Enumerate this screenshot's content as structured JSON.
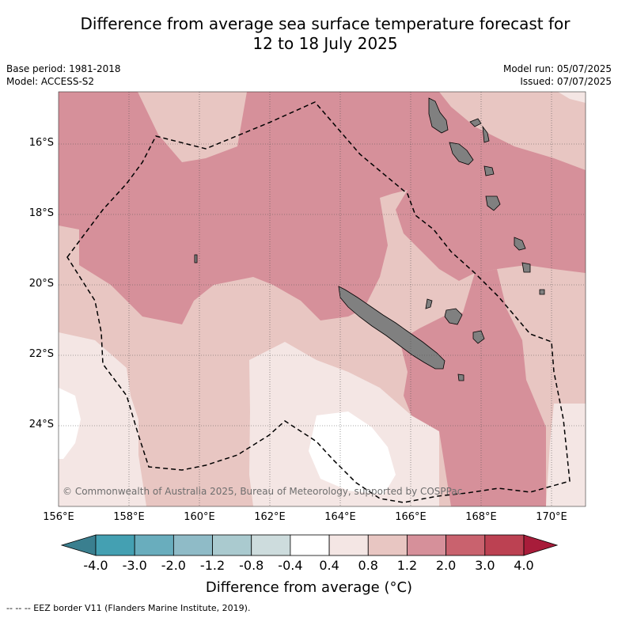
{
  "title_line1": "Difference from average sea surface temperature forecast for",
  "title_line2": "12 to 18 July 2025",
  "meta": {
    "base_period": "Base period: 1981-2018",
    "model": "Model: ACCESS-S2",
    "model_run": "Model run: 05/07/2025",
    "issued": "Issued: 07/07/2025"
  },
  "lat_ticks": [
    "16°S",
    "18°S",
    "20°S",
    "22°S",
    "24°S"
  ],
  "lon_ticks": [
    "156°E",
    "158°E",
    "160°E",
    "162°E",
    "164°E",
    "166°E",
    "168°E",
    "170°E"
  ],
  "copyright": "© Commonwealth of Australia 2025, Bureau of Meteorology, supported by COSPPac",
  "colorbar": {
    "ticks": [
      "-4.0",
      "-3.0",
      "-2.0",
      "-1.2",
      "-0.8",
      "-0.4",
      "0.4",
      "0.8",
      "1.2",
      "2.0",
      "3.0",
      "4.0"
    ],
    "low_extend_color": "#3a7f8f",
    "high_extend_color": "#a81c3a",
    "bin_colors": [
      "#44a0b2",
      "#69adbd",
      "#8fbbc7",
      "#aacacf",
      "#cddcdd",
      "#ffffff",
      "#f4e6e4",
      "#e8c6c2",
      "#d6909a",
      "#c9626e",
      "#bc4152"
    ],
    "label": "Difference from average (°C)"
  },
  "legend_footnote": "--  --  -- EEZ border V11 (Flanders Marine Institute, 2019).",
  "map_colors": {
    "level_1": "#f4e6e4",
    "level_2": "#e8c6c2",
    "level_3": "#d6909a",
    "land": "#808080"
  }
}
